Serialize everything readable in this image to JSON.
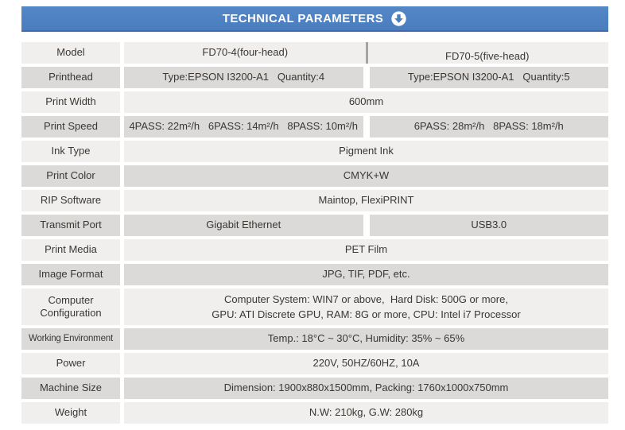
{
  "header": {
    "title": "TECHNICAL PARAMETERS",
    "icon": "circle-down-arrow"
  },
  "colors": {
    "header_blue": "#4a7dbe",
    "header_blue_dark": "#3e6ca8",
    "row_light": "#f0efed",
    "row_dark": "#dbdad8",
    "column_divider_gray": "#a5a4a3",
    "text": "#3a3734"
  },
  "table": {
    "rows": [
      {
        "label": "Model",
        "type": "split-line",
        "cells": [
          "FD70-4(four-head)",
          "FD70-5(five-head)"
        ]
      },
      {
        "label": "Printhead",
        "type": "split",
        "cells": [
          "Type:EPSON I3200-A1   Quantity:4",
          "Type:EPSON I3200-A1   Quantity:5"
        ]
      },
      {
        "label": "Print Width",
        "type": "full",
        "cells": [
          "600mm"
        ]
      },
      {
        "label": "Print Speed",
        "type": "split",
        "cells": [
          "4PASS: 22m²/h   6PASS: 14m²/h   8PASS: 10m²/h",
          "6PASS: 28m²/h   8PASS: 18m²/h"
        ]
      },
      {
        "label": "Ink Type",
        "type": "full",
        "cells": [
          "Pigment Ink"
        ]
      },
      {
        "label": "Print Color",
        "type": "full",
        "cells": [
          "CMYK+W"
        ]
      },
      {
        "label": "RIP Software",
        "type": "full",
        "cells": [
          "Maintop, FlexiPRINT"
        ]
      },
      {
        "label": "Transmit Port",
        "type": "split",
        "cells": [
          "Gigabit Ethernet",
          "USB3.0"
        ]
      },
      {
        "label": "Print Media",
        "type": "full",
        "cells": [
          "PET Film"
        ]
      },
      {
        "label": "Image Format",
        "type": "full",
        "cells": [
          "JPG, TIF, PDF, etc."
        ]
      },
      {
        "label": "Computer Configuration",
        "type": "full",
        "tall": true,
        "cells": [
          "Computer System: WIN7 or above,  Hard Disk: 500G or more,\nGPU: ATI Discrete GPU, RAM: 8G or more, CPU: Intel i7 Processor"
        ]
      },
      {
        "label": "Working Environment",
        "type": "full",
        "small_label": true,
        "cells": [
          "Temp.: 18°C ~ 30°C, Humidity: 35% ~ 65%"
        ]
      },
      {
        "label": "Power",
        "type": "full",
        "cells": [
          "220V, 50HZ/60HZ, 10A"
        ]
      },
      {
        "label": "Machine Size",
        "type": "full",
        "cells": [
          "Dimension: 1900x880x1500mm, Packing: 1760x1000x750mm"
        ]
      },
      {
        "label": "Weight",
        "type": "full",
        "cells": [
          "N.W: 210kg, G.W: 280kg"
        ]
      }
    ]
  }
}
